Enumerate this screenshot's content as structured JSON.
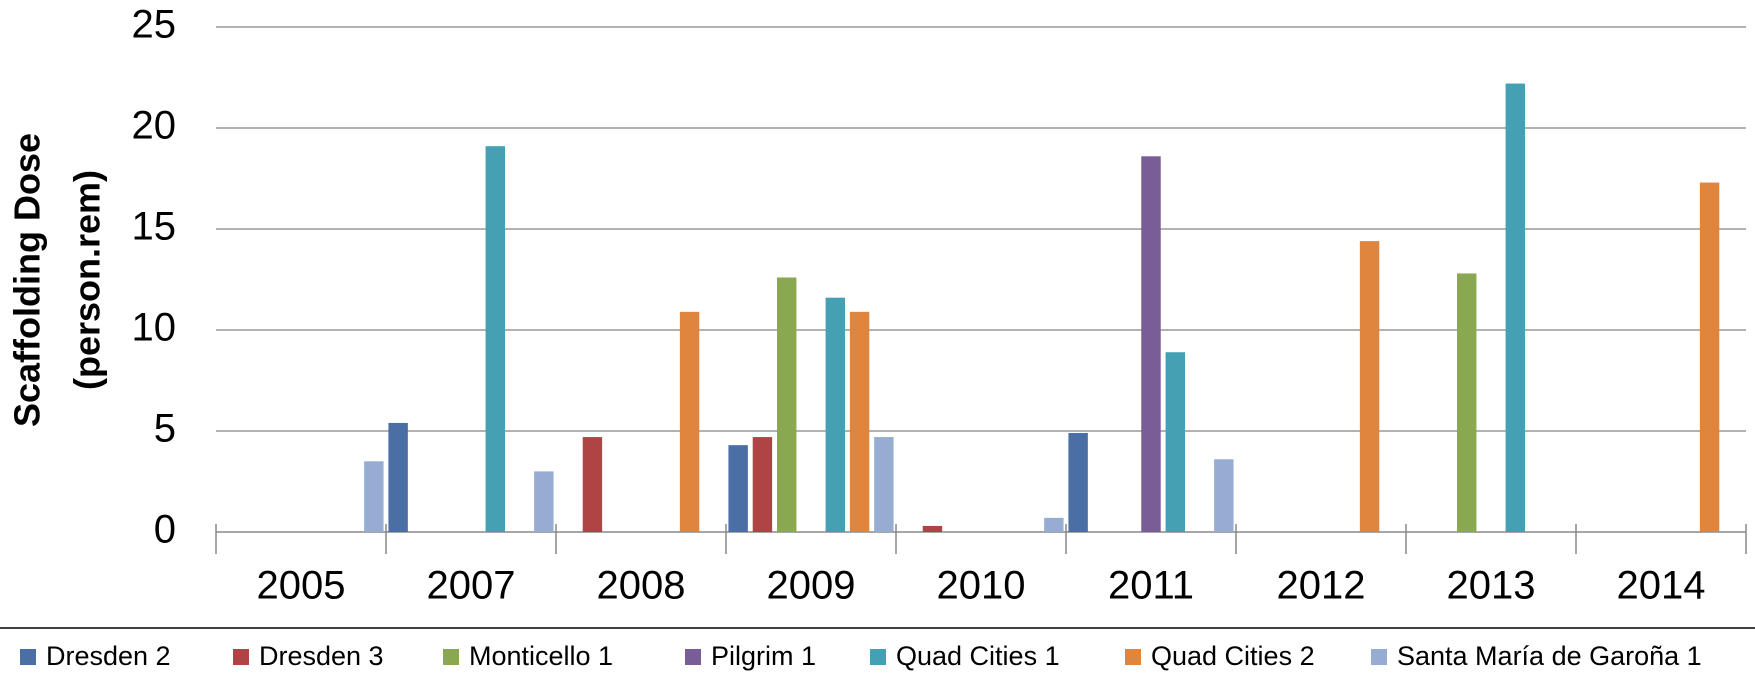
{
  "chart_data": {
    "type": "bar",
    "ylabel": [
      "Scaffolding Dose",
      "(person.rem)"
    ],
    "categories": [
      "2005",
      "2007",
      "2008",
      "2009",
      "2010",
      "2011",
      "2012",
      "2013",
      "2014"
    ],
    "series": [
      {
        "name": "Dresden 2",
        "color": "#4a6fa5",
        "values": [
          null,
          5.4,
          null,
          4.3,
          null,
          4.9,
          null,
          null,
          null
        ]
      },
      {
        "name": "Dresden 3",
        "color": "#b04444",
        "values": [
          null,
          null,
          4.7,
          4.7,
          0.3,
          null,
          null,
          null,
          null
        ]
      },
      {
        "name": "Monticello 1",
        "color": "#8aa84f",
        "values": [
          null,
          null,
          null,
          12.6,
          null,
          null,
          null,
          12.8,
          null
        ]
      },
      {
        "name": "Pilgrim 1",
        "color": "#785d96",
        "values": [
          null,
          null,
          null,
          null,
          null,
          18.6,
          null,
          null,
          null
        ]
      },
      {
        "name": "Quad Cities 1",
        "color": "#45a0b4",
        "values": [
          null,
          19.1,
          null,
          11.6,
          null,
          8.9,
          null,
          22.2,
          null
        ]
      },
      {
        "name": "Quad Cities 2",
        "color": "#e0853e",
        "values": [
          null,
          null,
          10.9,
          10.9,
          null,
          null,
          14.4,
          null,
          17.3
        ]
      },
      {
        "name": "Santa María de Garoña 1",
        "color": "#96acd2",
        "values": [
          3.5,
          3.0,
          null,
          4.7,
          0.7,
          3.6,
          null,
          null,
          null
        ]
      }
    ],
    "ylim": [
      0,
      25
    ],
    "yticks": [
      0,
      5,
      10,
      15,
      20,
      25
    ],
    "grid": true,
    "legend": "bottom"
  }
}
